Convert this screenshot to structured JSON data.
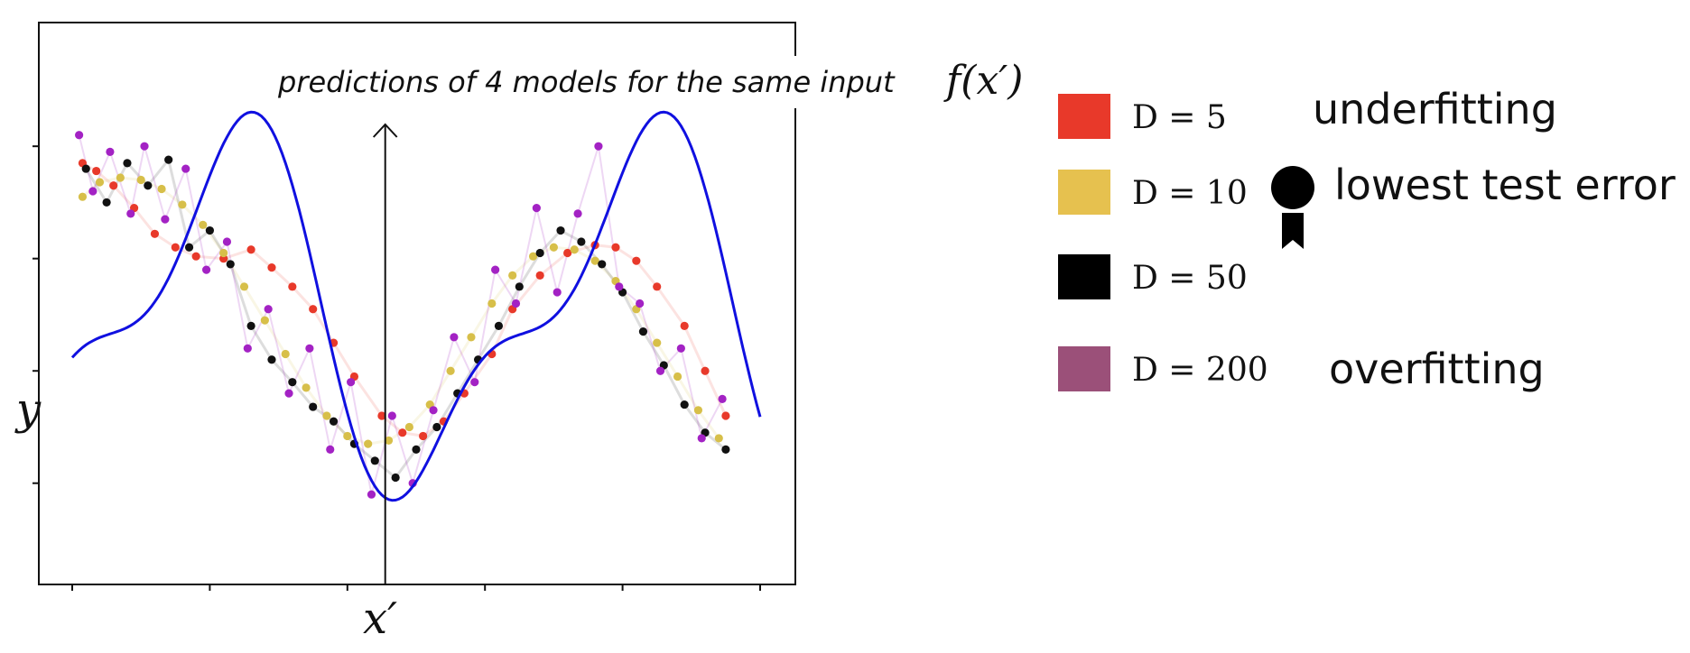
{
  "chart_data": {
    "type": "scatter",
    "title": "",
    "xlabel": "x′",
    "ylabel": "y",
    "xlim": [
      0,
      10
    ],
    "ylim": [
      -2.0,
      2.2
    ],
    "grid": false,
    "annotation": {
      "text": "predictions of 4 models for the same input",
      "math": "f(x′)",
      "x": 4.55
    },
    "true_function": {
      "name": "",
      "color": "#1010e0",
      "formula": "1.4*sin(1.05*x - 0.75) + 0.6*cos(2.1*x + 0.3)"
    },
    "series": [
      {
        "name": "D = 5",
        "color": "#e8392a",
        "x": [
          0.15,
          0.35,
          0.6,
          0.9,
          1.2,
          1.5,
          1.8,
          2.2,
          2.6,
          2.9,
          3.2,
          3.5,
          3.8,
          4.1,
          4.5,
          4.8,
          5.1,
          5.4,
          5.7,
          6.1,
          6.4,
          6.8,
          7.2,
          7.6,
          7.9,
          8.2,
          8.5,
          8.9,
          9.2,
          9.5
        ],
        "y": [
          1.35,
          1.28,
          1.15,
          0.95,
          0.72,
          0.6,
          0.52,
          0.5,
          0.58,
          0.42,
          0.25,
          0.05,
          -0.25,
          -0.55,
          -0.9,
          -1.05,
          -1.08,
          -0.95,
          -0.7,
          -0.35,
          0.05,
          0.35,
          0.55,
          0.62,
          0.6,
          0.48,
          0.25,
          -0.1,
          -0.5,
          -0.9
        ]
      },
      {
        "name": "D = 10",
        "color": "#d7bf49",
        "x": [
          0.15,
          0.4,
          0.7,
          1.0,
          1.3,
          1.6,
          1.9,
          2.2,
          2.5,
          2.8,
          3.1,
          3.4,
          3.7,
          4.0,
          4.3,
          4.6,
          4.9,
          5.2,
          5.5,
          5.8,
          6.1,
          6.4,
          6.7,
          7.0,
          7.3,
          7.6,
          7.9,
          8.2,
          8.5,
          8.8,
          9.1,
          9.4
        ],
        "y": [
          1.05,
          1.18,
          1.22,
          1.2,
          1.12,
          0.98,
          0.8,
          0.55,
          0.25,
          -0.05,
          -0.35,
          -0.65,
          -0.9,
          -1.08,
          -1.15,
          -1.12,
          -1.0,
          -0.8,
          -0.5,
          -0.2,
          0.1,
          0.35,
          0.52,
          0.6,
          0.58,
          0.48,
          0.3,
          0.05,
          -0.25,
          -0.55,
          -0.85,
          -1.1
        ]
      },
      {
        "name": "D = 50",
        "color": "#111111",
        "x": [
          0.2,
          0.5,
          0.8,
          1.1,
          1.4,
          1.7,
          2.0,
          2.3,
          2.6,
          2.9,
          3.2,
          3.5,
          3.8,
          4.1,
          4.4,
          4.7,
          5.0,
          5.3,
          5.6,
          5.9,
          6.2,
          6.5,
          6.8,
          7.1,
          7.4,
          7.7,
          8.0,
          8.3,
          8.6,
          8.9,
          9.2,
          9.5
        ],
        "y": [
          1.3,
          1.0,
          1.35,
          1.15,
          1.38,
          0.6,
          0.75,
          0.45,
          -0.1,
          -0.4,
          -0.6,
          -0.82,
          -0.95,
          -1.15,
          -1.3,
          -1.45,
          -1.2,
          -1.0,
          -0.7,
          -0.4,
          -0.1,
          0.25,
          0.55,
          0.75,
          0.65,
          0.45,
          0.2,
          -0.15,
          -0.45,
          -0.8,
          -1.05,
          -1.2
        ]
      },
      {
        "name": "D = 200",
        "color": "#a322c4",
        "x": [
          0.1,
          0.3,
          0.55,
          0.85,
          1.05,
          1.35,
          1.65,
          1.95,
          2.25,
          2.55,
          2.85,
          3.15,
          3.45,
          3.75,
          4.05,
          4.35,
          4.65,
          4.95,
          5.25,
          5.55,
          5.85,
          6.15,
          6.45,
          6.75,
          7.05,
          7.35,
          7.65,
          7.95,
          8.25,
          8.55,
          8.85,
          9.15,
          9.45
        ],
        "y": [
          1.6,
          1.1,
          1.45,
          0.9,
          1.5,
          0.85,
          1.3,
          0.4,
          0.65,
          -0.3,
          0.05,
          -0.7,
          -0.3,
          -1.2,
          -0.6,
          -1.6,
          -0.9,
          -1.5,
          -0.85,
          -0.2,
          -0.6,
          0.4,
          0.1,
          0.95,
          0.2,
          0.9,
          1.5,
          0.25,
          0.1,
          -0.5,
          -0.3,
          -1.1,
          -0.75
        ]
      }
    ]
  },
  "legend": {
    "items": [
      {
        "label": "D = 5",
        "var": "D",
        "value": "5",
        "color": "#e8392a"
      },
      {
        "label": "D = 10",
        "var": "D",
        "value": "10",
        "color": "#e6c14f"
      },
      {
        "label": "D = 50",
        "var": "D",
        "value": "50",
        "color": "#000000"
      },
      {
        "label": "D = 200",
        "var": "D",
        "value": "200",
        "color": "#9b5079"
      }
    ]
  },
  "notes": {
    "underfitting": "underfitting",
    "lowest": "lowest test error",
    "overfitting": "overfitting",
    "medal_icon": "medal-icon"
  }
}
